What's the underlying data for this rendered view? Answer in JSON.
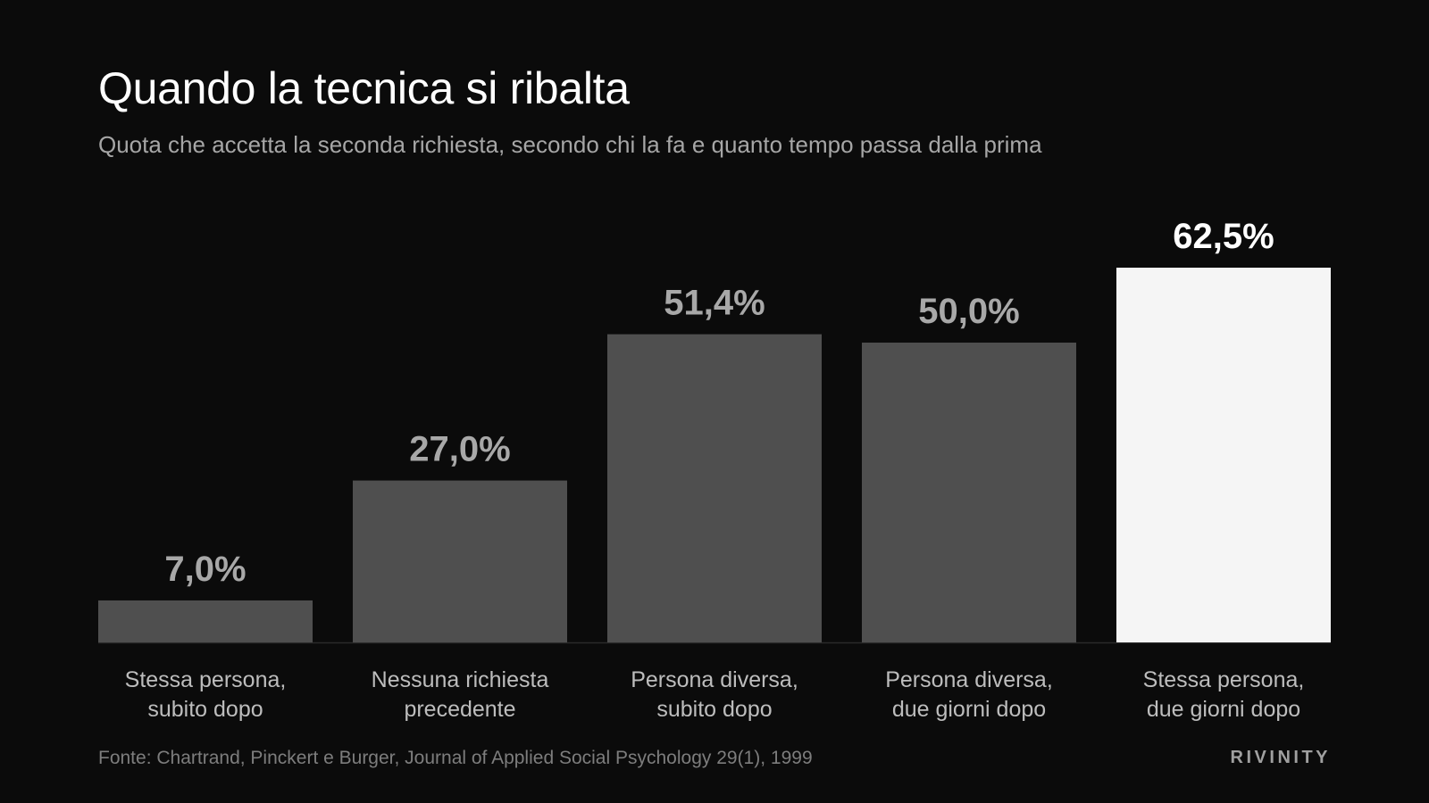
{
  "title": "Quando la tecnica si ribalta",
  "subtitle": "Quota che accetta la seconda richiesta, secondo chi la fa e quanto tempo passa dalla prima",
  "source": "Fonte: Chartrand, Pinckert e Burger, Journal of Applied Social Psychology 29(1), 1999",
  "brand": "RIVINITY",
  "colors": {
    "background": "#0b0b0b",
    "bar": "#4f4f4f",
    "bar_highlight": "#f5f5f5",
    "value_label": "#a8a8a8",
    "value_label_highlight": "#ffffff",
    "category_label": "#bdbdbd",
    "baseline": "#2a2a2a"
  },
  "chart_data": {
    "type": "bar",
    "title": "Quando la tecnica si ribalta",
    "subtitle": "Quota che accetta la seconda richiesta, secondo chi la fa e quanto tempo passa dalla prima",
    "categories": [
      [
        "Stessa persona,",
        "subito dopo"
      ],
      [
        "Nessuna richiesta",
        "precedente"
      ],
      [
        "Persona diversa,",
        "subito dopo"
      ],
      [
        "Persona diversa,",
        "due giorni dopo"
      ],
      [
        "Stessa persona,",
        "due giorni dopo"
      ]
    ],
    "values": [
      7.0,
      27.0,
      51.4,
      50.0,
      62.5
    ],
    "value_labels": [
      "7,0%",
      "27,0%",
      "51,4%",
      "50,0%",
      "62,5%"
    ],
    "highlight_index": 4,
    "ylim": [
      0,
      62.5
    ],
    "grid": false,
    "legend": "none",
    "xlabel": "",
    "ylabel": ""
  }
}
